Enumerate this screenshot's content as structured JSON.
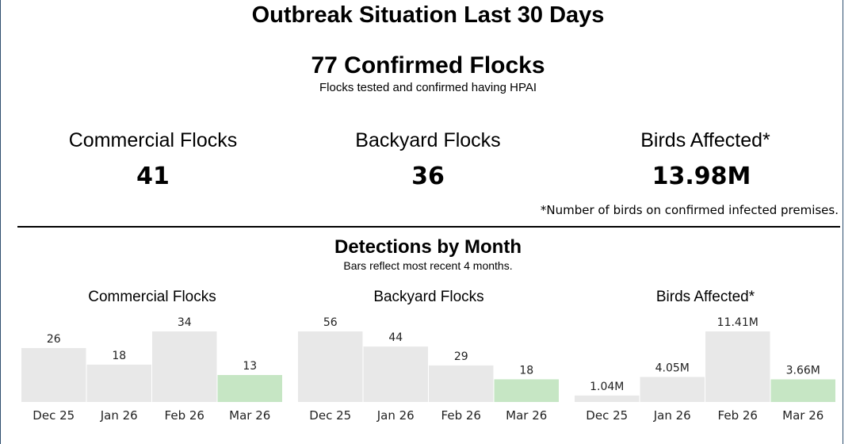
{
  "title": "Outbreak Situation Last 30 Days",
  "confirmed": {
    "headline": "77 Confirmed Flocks",
    "subtitle": "Flocks tested and confirmed having HPAI"
  },
  "kpis": [
    {
      "label": "Commercial Flocks",
      "value": "41"
    },
    {
      "label": "Backyard Flocks",
      "value": "36"
    },
    {
      "label": "Birds Affected*",
      "value": "13.98M"
    }
  ],
  "footnote": "*Number of birds on confirmed infected premises.",
  "detections": {
    "title": "Detections by Month",
    "subtitle": "Bars reflect most recent 4 months."
  },
  "colors": {
    "bar": "#e8e8e8",
    "highlight": "#c6e6c4",
    "frame": "#2f4f6f"
  },
  "chart_data": [
    {
      "type": "bar",
      "title": "Commercial Flocks",
      "categories": [
        "Dec 25",
        "Jan 26",
        "Feb 26",
        "Mar 26"
      ],
      "values": [
        26,
        18,
        34,
        13
      ],
      "labels": [
        "26",
        "18",
        "34",
        "13"
      ],
      "highlight_index": 3
    },
    {
      "type": "bar",
      "title": "Backyard Flocks",
      "categories": [
        "Dec 25",
        "Jan 26",
        "Feb 26",
        "Mar 26"
      ],
      "values": [
        56,
        44,
        29,
        18
      ],
      "labels": [
        "56",
        "44",
        "29",
        "18"
      ],
      "highlight_index": 3
    },
    {
      "type": "bar",
      "title": "Birds Affected*",
      "categories": [
        "Dec 25",
        "Jan 26",
        "Feb 26",
        "Mar 26"
      ],
      "values": [
        1.04,
        4.05,
        11.41,
        3.66
      ],
      "labels": [
        "1.04M",
        "4.05M",
        "11.41M",
        "3.66M"
      ],
      "highlight_index": 3
    }
  ]
}
